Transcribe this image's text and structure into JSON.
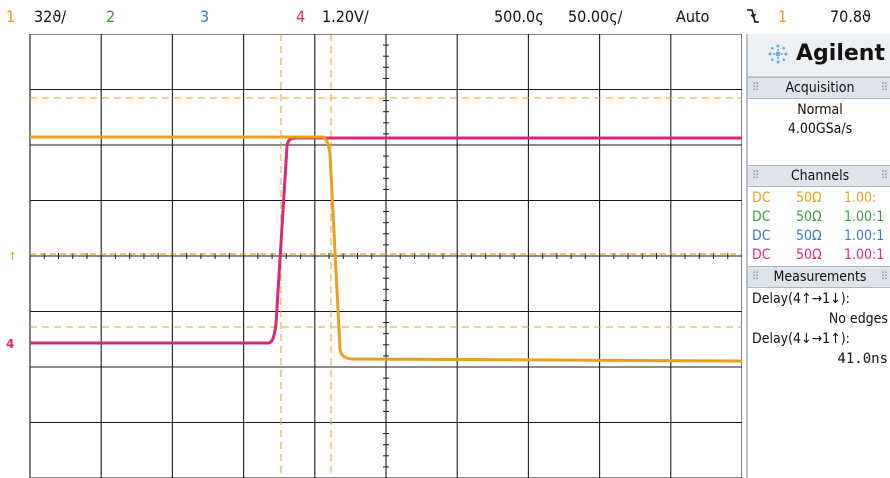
{
  "topbar": {
    "ch1_number": "1",
    "ch1_scale": "32ϑ/",
    "ch2_number": "2",
    "ch3_number": "3",
    "ch4_number": "4",
    "ch4_scale": "1.20V/",
    "time_position": "500.0ς",
    "time_scale": "50.00ς/",
    "trigger_mode": "Auto",
    "trigger_edge_icon": "falling-edge-icon",
    "trigger_source": "1",
    "trigger_level": "70.8ϑ"
  },
  "colors": {
    "ch1": "#e8a020",
    "ch2": "#3f9a3f",
    "ch3": "#3a78c8",
    "ch4": "#d8287a",
    "grid": "#1a1a1a",
    "panel_header": "#dfe4ea"
  },
  "panel": {
    "brand": "Agilent",
    "acquisition": {
      "title": "Acquisition",
      "mode": "Normal",
      "rate": "4.00GSa/s"
    },
    "channels": {
      "title": "Channels",
      "rows": [
        {
          "coupling": "DC",
          "impedance": "50Ω",
          "probe": "1.00:"
        },
        {
          "coupling": "DC",
          "impedance": "50Ω",
          "probe": "1.00:1"
        },
        {
          "coupling": "DC",
          "impedance": "50Ω",
          "probe": "1.00:1"
        },
        {
          "coupling": "DC",
          "impedance": "50Ω",
          "probe": "1.00:1"
        }
      ]
    },
    "measurements": {
      "title": "Measurements",
      "items": [
        {
          "label": "Delay(4↑→1↓):",
          "value": "No edges"
        },
        {
          "label": "Delay(4↓→1↑):",
          "value": "41.0ns"
        }
      ]
    }
  }
}
